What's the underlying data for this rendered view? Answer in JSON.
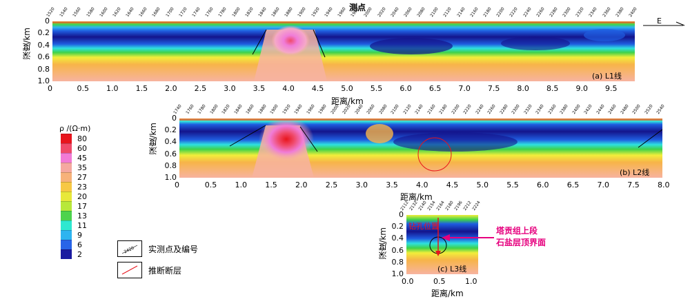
{
  "top_label": "测点",
  "direction_label": "E",
  "panels": {
    "L1": {
      "caption": "(a) L1线",
      "xlabel": "距离/km",
      "ylabel": "深度/km",
      "x_ticks": [
        "0",
        "0.5",
        "1.0",
        "1.5",
        "2.0",
        "2.5",
        "3.0",
        "3.5",
        "4.0",
        "4.5",
        "5.0",
        "5.5",
        "6.0",
        "6.5",
        "7.0",
        "7.5",
        "8.0",
        "8.5",
        "9.0",
        "9.5"
      ],
      "y_ticks": [
        "0",
        "0.2",
        "0.4",
        "0.6",
        "0.8",
        "1.0"
      ],
      "stations": [
        "1520",
        "1540",
        "1560",
        "1580",
        "1600",
        "1620",
        "1640",
        "1660",
        "1680",
        "1700",
        "1720",
        "1740",
        "1760",
        "1780",
        "1800",
        "1820",
        "1840",
        "1860",
        "1880",
        "1900",
        "1920",
        "1940",
        "1960",
        "1980",
        "2000",
        "2020",
        "2040",
        "2060",
        "2080",
        "2100",
        "2120",
        "2140",
        "2160",
        "2180",
        "2200",
        "2220",
        "2240",
        "2260",
        "2280",
        "2300",
        "2320",
        "2340",
        "2360",
        "2380",
        "2400"
      ]
    },
    "L2": {
      "caption": "(b) L2线",
      "xlabel": "距离/km",
      "ylabel": "深度/km",
      "x_ticks": [
        "0",
        "0.5",
        "1.0",
        "1.5",
        "2.0",
        "2.5",
        "3.0",
        "3.5",
        "4.0",
        "4.5",
        "5.0",
        "5.5",
        "6.0",
        "6.5",
        "7.0",
        "7.5",
        "8.0"
      ],
      "y_ticks": [
        "0",
        "0.2",
        "0.4",
        "0.6",
        "0.8",
        "1.0"
      ],
      "stations": [
        "1740",
        "1760",
        "1780",
        "1800",
        "1820",
        "1840",
        "1860",
        "1880",
        "1900",
        "1920",
        "1940",
        "1960",
        "1980",
        "2000",
        "2020",
        "2040",
        "2060",
        "2080",
        "2100",
        "2120",
        "2140",
        "2160",
        "2180",
        "2200",
        "2220",
        "2240",
        "2260",
        "2280",
        "2300",
        "2320",
        "2340",
        "2360",
        "2380",
        "2400",
        "2420",
        "2440",
        "2460",
        "2480",
        "2500",
        "2520",
        "2540"
      ]
    },
    "L3": {
      "caption": "(c) L3线",
      "xlabel": "距离/km",
      "ylabel": "深度/km",
      "x_ticks": [
        "0.0",
        "0.5",
        "1.0"
      ],
      "y_ticks": [
        "0",
        "0.2",
        "0.4",
        "0.6",
        "0.8",
        "1.0"
      ],
      "stations": [
        "2112",
        "2132",
        "2140",
        "2154",
        "2164",
        "2180",
        "2196",
        "2212",
        "2224"
      ],
      "drill_label": "钻孔位置",
      "annotation_line1": "塔贡组上段",
      "annotation_line2": "石盐层顶界面"
    }
  },
  "colorbar": {
    "title": "ρ /(Ω·m)",
    "levels": [
      "80",
      "60",
      "45",
      "35",
      "27",
      "23",
      "20",
      "17",
      "13",
      "11",
      "9",
      "6",
      "2"
    ],
    "colors": [
      "#e8141c",
      "#f04a6a",
      "#f27ad6",
      "#f5a8a0",
      "#f7b27a",
      "#f7c844",
      "#e8e83a",
      "#b8e83a",
      "#4dd34d",
      "#2ee8d0",
      "#2eb4f0",
      "#2864e8",
      "#1a1aa0"
    ]
  },
  "legend": {
    "station_symbol_text": "2420",
    "station_label": "实测点及编号",
    "fault_label": "推断断层"
  },
  "colors": {
    "deep_blue": "#14148c",
    "blue": "#1f5de0",
    "cyan": "#2ee0e0",
    "green": "#3fd24a",
    "yellow": "#f2ee3a",
    "orange": "#f7b449",
    "salmon": "#f7b3a0",
    "pink": "#f07cd8",
    "red": "#e8141c",
    "magenta_annot": "#e6007e"
  }
}
